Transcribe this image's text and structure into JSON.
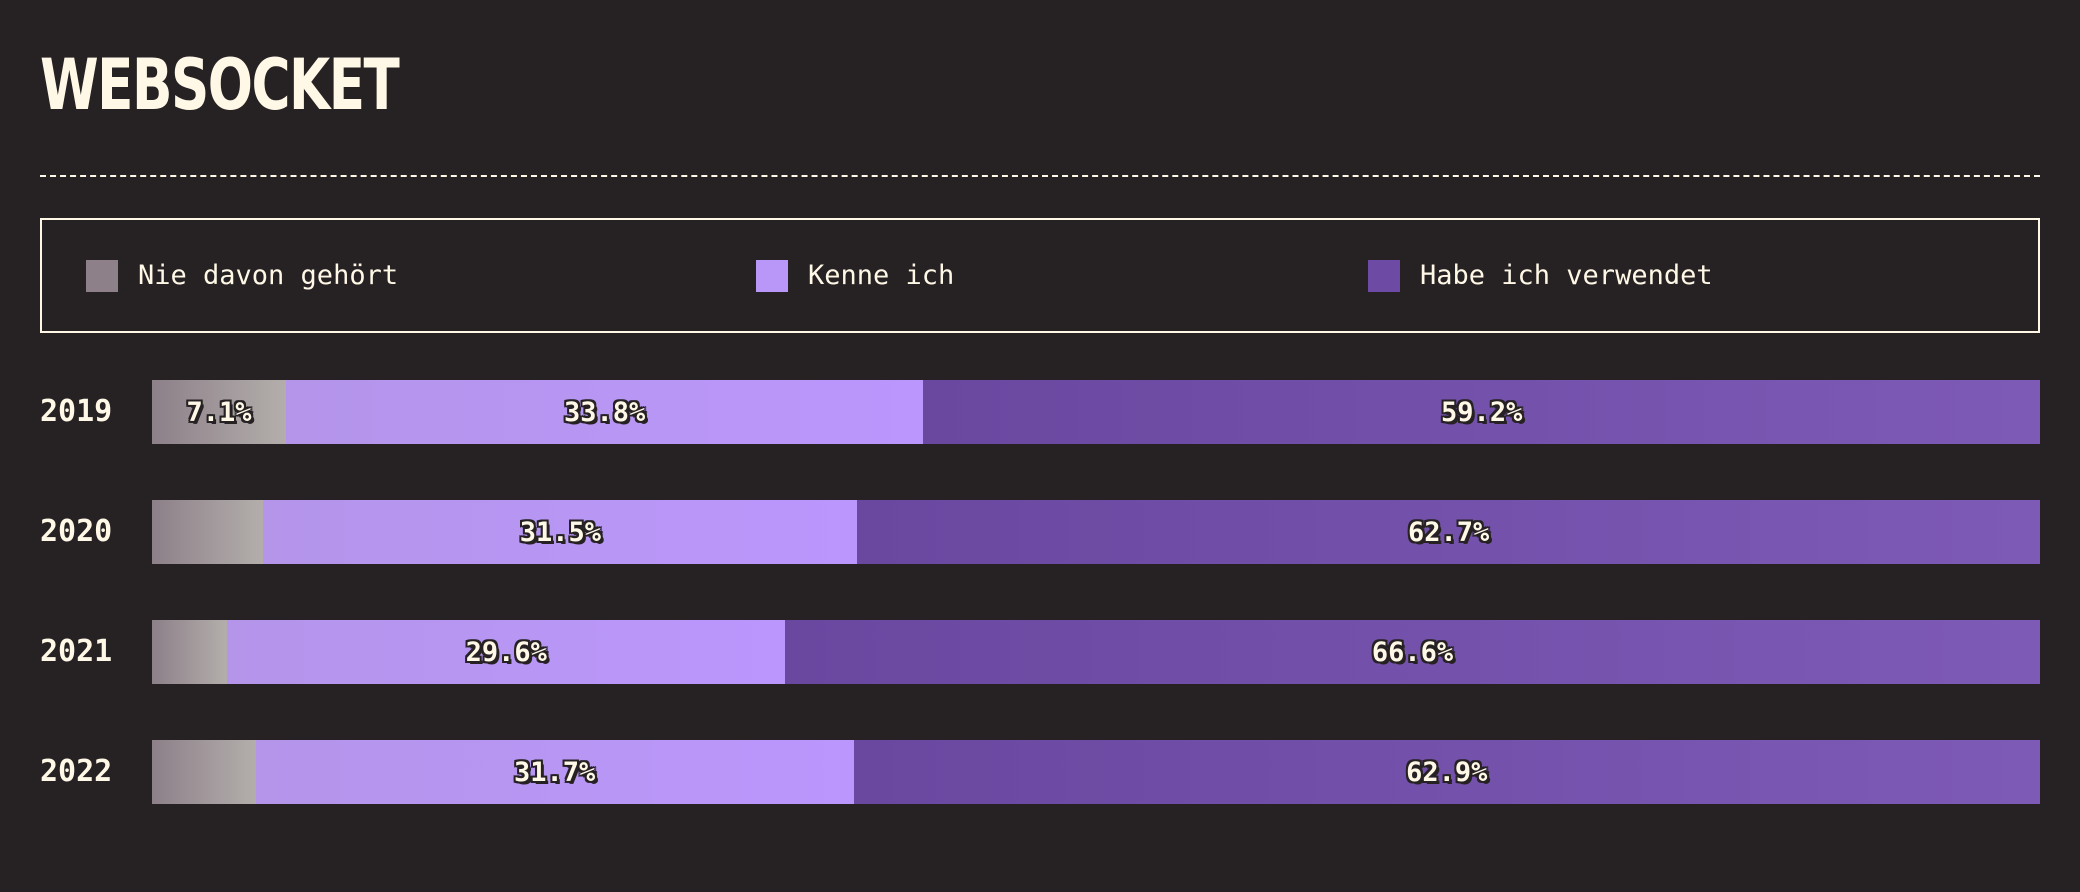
{
  "title": "WEBSOCKET",
  "colors": {
    "background": "#262224",
    "text": "#fff8e7",
    "never": "#8d8089",
    "known": "#b997f8",
    "used": "#6d4aa4"
  },
  "legend": [
    {
      "label": "Nie davon gehört",
      "color": "#8d8089"
    },
    {
      "label": "Kenne ich",
      "color": "#b997f8"
    },
    {
      "label": "Habe ich verwendet",
      "color": "#6d4aa4"
    }
  ],
  "chart_data": {
    "type": "bar",
    "orientation": "horizontal",
    "stacked": true,
    "normalized": true,
    "title": "WEBSOCKET",
    "legend_position": "top",
    "categories": [
      "2019",
      "2020",
      "2021",
      "2022"
    ],
    "series": [
      {
        "name": "Nie davon gehört",
        "values": [
          7.1,
          5.9,
          4.0,
          5.5
        ],
        "labels": [
          "7.1%",
          "",
          "",
          ""
        ]
      },
      {
        "name": "Kenne ich",
        "values": [
          33.8,
          31.5,
          29.6,
          31.7
        ],
        "labels": [
          "33.8%",
          "31.5%",
          "29.6%",
          "31.7%"
        ]
      },
      {
        "name": "Habe ich verwendet",
        "values": [
          59.2,
          62.7,
          66.6,
          62.9
        ],
        "labels": [
          "59.2%",
          "62.7%",
          "66.6%",
          "62.9%"
        ]
      }
    ]
  }
}
